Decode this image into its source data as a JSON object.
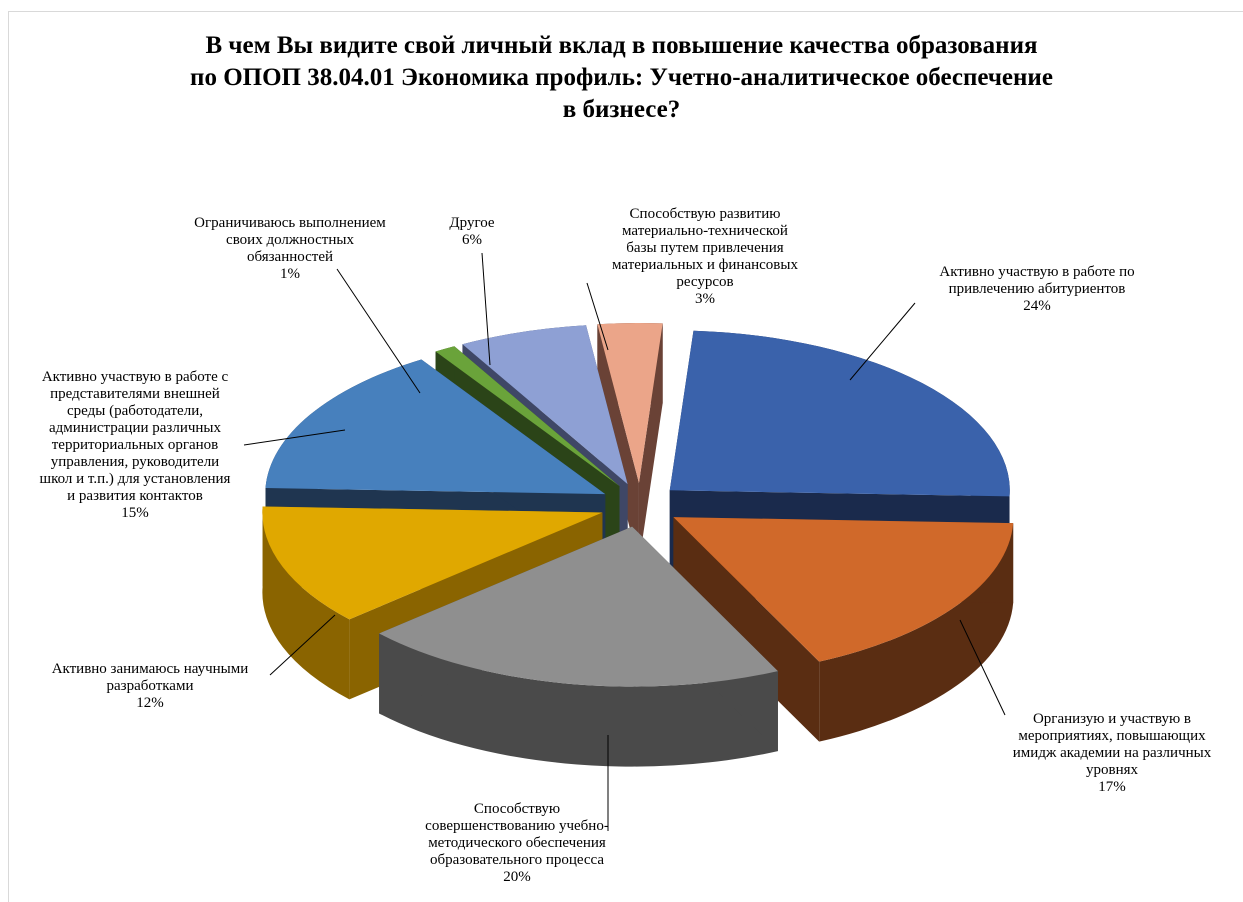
{
  "chart_data": {
    "type": "pie",
    "title_lines": [
      "В чем Вы видите свой личный вклад в повышение качества образования",
      "по ОПОП 38.04.01 Экономика профиль: Учетно-аналитическое обеспечение",
      "в бизнесе?"
    ],
    "slices": [
      {
        "label_lines": [
          "Активно участвую  в работе по",
          "привлечению абитуриентов"
        ],
        "value": 24,
        "pct_text": "24%",
        "color": "#3a62ab",
        "side": "#1a2a4c"
      },
      {
        "label_lines": [
          "Организую и участвую  в",
          "мероприятиях, повышающих",
          "имидж академии на различных",
          "уровнях"
        ],
        "value": 17,
        "pct_text": "17%",
        "color": "#d0692a",
        "side": "#5a2d12"
      },
      {
        "label_lines": [
          "Способствую",
          "совершенствованию учебно-",
          "методического обеспечения",
          "образовательного процесса"
        ],
        "value": 20,
        "pct_text": "20%",
        "color": "#8f8f8f",
        "side": "#4a4a4a"
      },
      {
        "label_lines": [
          "Активно занимаюсь научными",
          "разработками"
        ],
        "value": 12,
        "pct_text": "12%",
        "color": "#e0a800",
        "side": "#8a6400"
      },
      {
        "label_lines": [
          "Активно участвую  в работе с",
          "представителями внешней",
          "среды (работодатели,",
          "администрации различных",
          "территориальных органов",
          "управления,  руководители",
          "школ и т.п.) для установления",
          "и развития контактов"
        ],
        "value": 15,
        "pct_text": "15%",
        "color": "#4780bd",
        "side": "#1f3550"
      },
      {
        "label_lines": [
          "Ограничиваюсь выполнением",
          "своих должностных",
          "обязанностей"
        ],
        "value": 1,
        "pct_text": "1%",
        "color": "#6aa33a",
        "side": "#2b4418"
      },
      {
        "label_lines": [
          "Другое"
        ],
        "value": 6,
        "pct_text": "6%",
        "color": "#8ea0d4",
        "side": "#3f4766"
      },
      {
        "label_lines": [
          "Способствую развитию",
          "материально-технической",
          "базы путем привлечения",
          "материальных и финансовых",
          "ресурсов"
        ],
        "value": 3,
        "pct_text": "3%",
        "color": "#eba589",
        "side": "#6a4236"
      }
    ]
  }
}
